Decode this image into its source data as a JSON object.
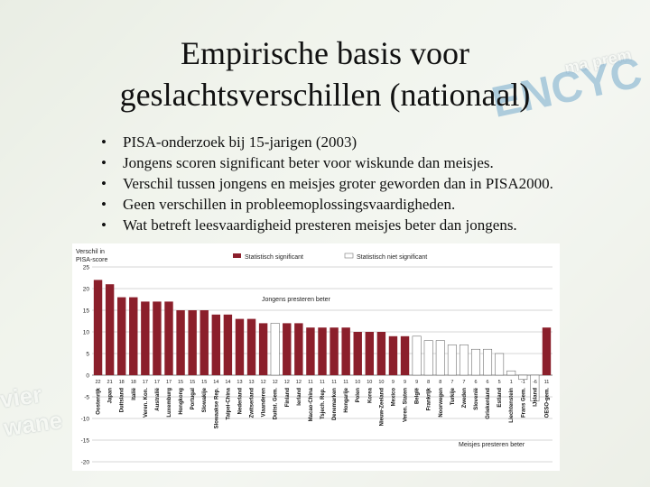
{
  "slide": {
    "title_line1": "Empirische basis voor",
    "title_line2": "geslachtsverschillen (nationaal)",
    "bullets": [
      "PISA-onderzoek bij 15-jarigen (2003)",
      "Jongens scoren significant beter voor wiskunde dan meisjes.",
      "Verschil tussen jongens en meisjes groter geworden dan in PISA2000.",
      "Geen verschillen in probleemoplossingsvaardigheden.",
      "Wat betreft leesvaardigheid presteren meisjes beter dan jongens."
    ]
  },
  "colors": {
    "significant": "#8b1f2b",
    "not_significant": "#ffffff",
    "bar_outline": "#555555",
    "grid": "#999999"
  },
  "chart_data": {
    "type": "bar",
    "ylabel_line1": "Verschil in",
    "ylabel_line2": "PISA-score",
    "legend": {
      "significant": "Statistisch significant",
      "not_significant": "Statistisch niet significant",
      "position": "top"
    },
    "annotations": {
      "boys_better": "Jongens presteren beter",
      "girls_better": "Meisjes presteren beter"
    },
    "ylim": [
      -20,
      25
    ],
    "yticks": [
      25,
      20,
      15,
      10,
      5,
      0,
      -5,
      -10,
      -15,
      -20
    ],
    "grid": true,
    "categories": [
      "Oostenrijk",
      "Japan",
      "Duitsland",
      "Italië",
      "Veren. Kon.",
      "Australië",
      "Luxemburg",
      "Hongkong",
      "Portugal",
      "Slowakije",
      "Slowaakse Rep.",
      "Taipei-China",
      "Nederland",
      "Zwitserland",
      "Vlaanderen",
      "Duitst. Gem.",
      "Finland",
      "Ierland",
      "Macao-China",
      "Tsjech. Rep.",
      "Denemarken",
      "Hongarije",
      "Polen",
      "Korea",
      "Nieuw-Zeeland",
      "Mexico",
      "Veren. Staten",
      "België",
      "Frankrijk",
      "Noorwegen",
      "Turkije",
      "Zweden",
      "Slovenië",
      "Griekenland",
      "Estland",
      "Liechtenstein",
      "Frans Gem.",
      "IJsland",
      "OESO-gem."
    ],
    "value_labels": [
      "22",
      "21",
      "18",
      "18",
      "17",
      "17",
      "17",
      "15",
      "15",
      "15",
      "14",
      "14",
      "13",
      "13",
      "12",
      "12",
      "12",
      "12",
      "11",
      "11",
      "11",
      "11",
      "10",
      "10",
      "10",
      "9",
      "9",
      "9",
      "8",
      "8",
      "7",
      "7",
      "6",
      "6",
      "5",
      "1",
      "-1",
      "-6",
      "11"
    ],
    "values": [
      22,
      21,
      18,
      18,
      17,
      17,
      17,
      15,
      15,
      15,
      14,
      14,
      13,
      13,
      12,
      12,
      12,
      12,
      11,
      11,
      11,
      11,
      10,
      10,
      10,
      9,
      9,
      9,
      8,
      8,
      7,
      7,
      6,
      6,
      5,
      1,
      -1,
      -6,
      11
    ],
    "significant": [
      true,
      true,
      true,
      true,
      true,
      true,
      true,
      true,
      true,
      true,
      true,
      true,
      true,
      true,
      true,
      false,
      true,
      true,
      true,
      true,
      true,
      true,
      true,
      true,
      true,
      true,
      true,
      false,
      false,
      false,
      false,
      false,
      false,
      false,
      false,
      false,
      false,
      false,
      true
    ]
  }
}
